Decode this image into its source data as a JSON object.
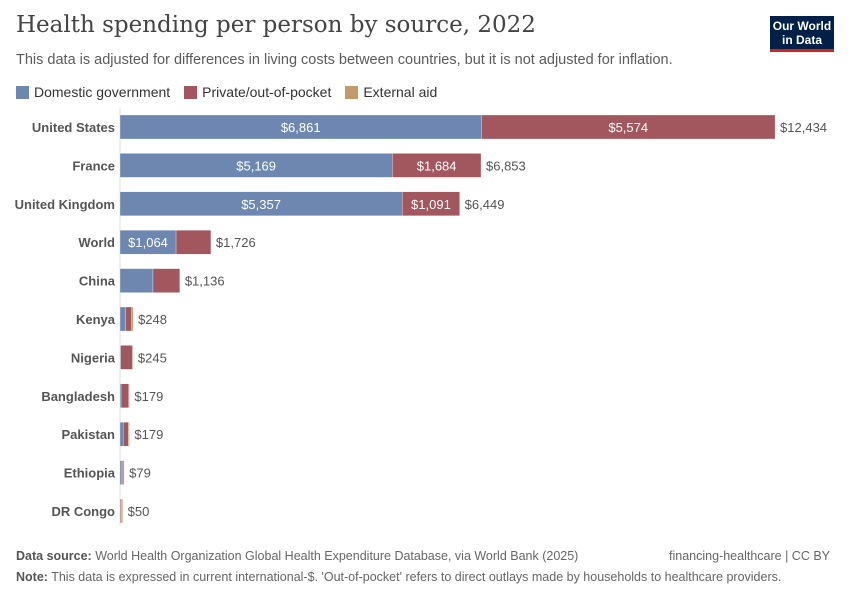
{
  "title": "Health spending per person by source, 2022",
  "subtitle": "This data is adjusted for differences in living costs between countries, but it is not adjusted for inflation.",
  "logo": "Our World in Data",
  "footer": {
    "source_label": "Data source:",
    "source": "World Health Organization Global Health Expenditure Database, via World Bank (2025)",
    "right": "financing-healthcare | CC BY",
    "note_label": "Note:",
    "note": "This data is expressed in current international-$. 'Out-of-pocket' refers to direct outlays made by households to healthcare providers."
  },
  "chart_data": {
    "type": "bar",
    "orientation": "horizontal",
    "stacked": true,
    "title": "Health spending per person by source, 2022",
    "categories": [
      "United States",
      "France",
      "United Kingdom",
      "World",
      "China",
      "Kenya",
      "Nigeria",
      "Bangladesh",
      "Pakistan",
      "Ethiopia",
      "DR Congo"
    ],
    "series": [
      {
        "name": "Domestic government",
        "color": "#6d87b0",
        "values": [
          6861,
          5169,
          5357,
          1064,
          626,
          110,
          12,
          20,
          60,
          25,
          8
        ]
      },
      {
        "name": "Private/out-of-pocket",
        "color": "#a2575f",
        "values": [
          5574,
          1684,
          1091,
          662,
          510,
          110,
          225,
          145,
          100,
          30,
          20
        ]
      },
      {
        "name": "External aid",
        "color": "#c39b6a",
        "values": [
          0,
          0,
          0,
          0,
          0,
          28,
          8,
          14,
          19,
          24,
          22
        ]
      }
    ],
    "totals": [
      "$12,434",
      "$6,853",
      "$6,449",
      "$1,726",
      "$1,136",
      "$248",
      "$245",
      "$179",
      "$179",
      "$79",
      "$50"
    ],
    "segment_labels": [
      [
        "$6,861",
        "$5,574"
      ],
      [
        "$5,169",
        "$1,684"
      ],
      [
        "$5,357",
        "$1,091"
      ],
      [
        "$1,064",
        ""
      ],
      [
        "",
        ""
      ],
      [
        "",
        ""
      ],
      [
        "",
        ""
      ],
      [
        "",
        ""
      ],
      [
        "",
        ""
      ],
      [
        "",
        ""
      ],
      [
        "",
        ""
      ]
    ],
    "xlim": [
      0,
      12434
    ],
    "legend_position": "top-left",
    "grid": false
  }
}
